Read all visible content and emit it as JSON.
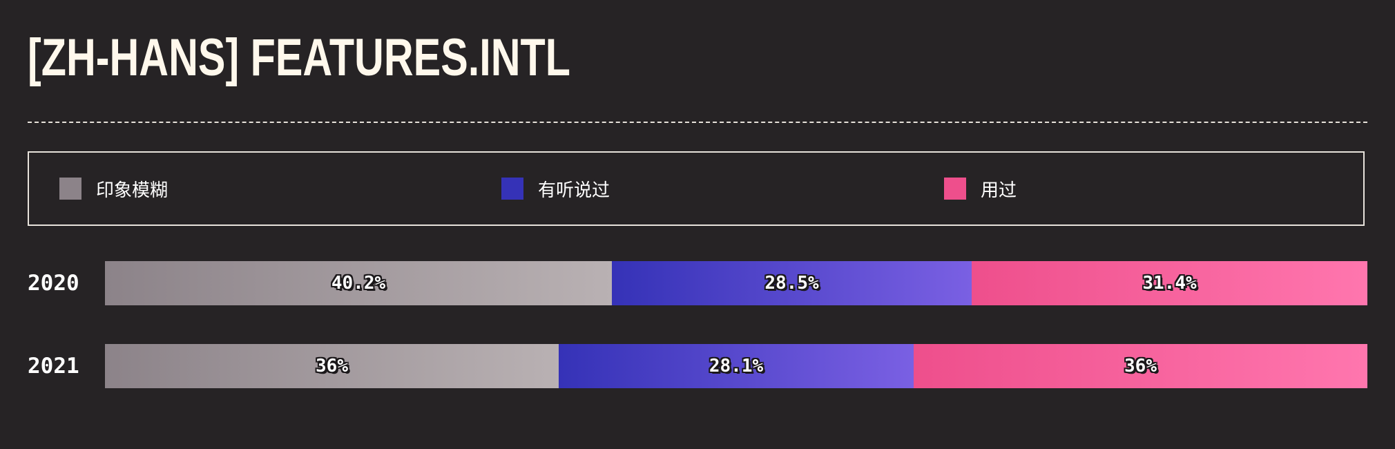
{
  "header": {
    "title": "[ZH-HANS] FEATURES.INTL"
  },
  "chart_data": {
    "type": "bar",
    "orientation": "horizontal",
    "stacked": true,
    "normalized": true,
    "title": "[ZH-HANS] FEATURES.INTL",
    "legend_position": "top",
    "categories": [
      "2020",
      "2021"
    ],
    "series": [
      {
        "name": "印象模糊",
        "values": [
          40.2,
          36
        ],
        "labels": [
          "40.2%",
          "36%"
        ],
        "color": "#8c8389",
        "color_end": "#b9b1b3"
      },
      {
        "name": "有听说过",
        "values": [
          28.5,
          28.1
        ],
        "labels": [
          "28.5%",
          "28.1%"
        ],
        "color": "#3532b7",
        "color_end": "#7a60e3"
      },
      {
        "name": "用过",
        "values": [
          31.4,
          36
        ],
        "labels": [
          "31.4%",
          "36%"
        ],
        "color": "#ee4f8c",
        "color_end": "#ff76ae"
      }
    ]
  }
}
